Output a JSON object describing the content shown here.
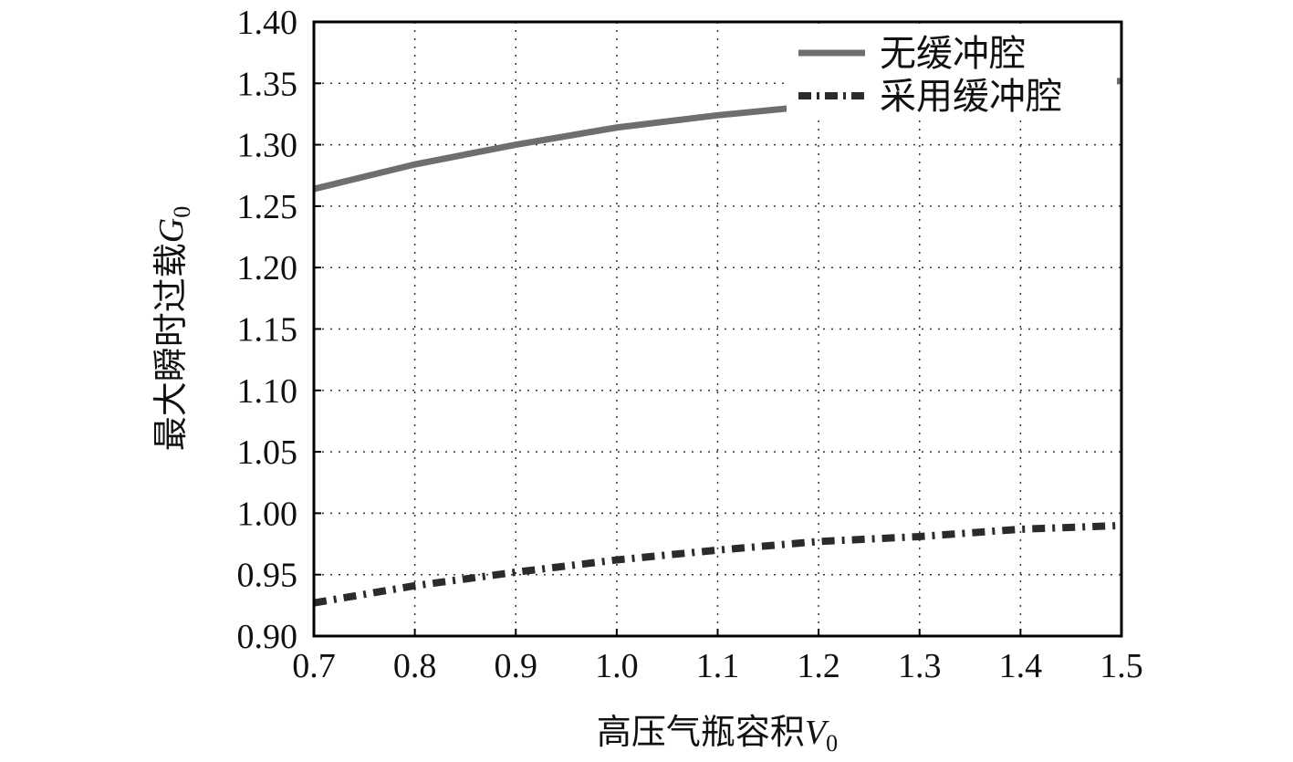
{
  "chart_data": {
    "type": "line",
    "title": "",
    "xlabel": "高压气瓶容积",
    "xlabel_var": "V",
    "xlabel_sub": "0",
    "ylabel": "最大瞬时过载",
    "ylabel_var": "G",
    "ylabel_sub": "0",
    "xlim": [
      0.7,
      1.5
    ],
    "ylim": [
      0.9,
      1.4
    ],
    "xticks": [
      "0.7",
      "0.8",
      "0.9",
      "1.0",
      "1.1",
      "1.2",
      "1.3",
      "1.4",
      "1.5"
    ],
    "yticks": [
      "0.90",
      "0.95",
      "1.00",
      "1.05",
      "1.10",
      "1.15",
      "1.20",
      "1.25",
      "1.30",
      "1.35",
      "1.40"
    ],
    "grid": true,
    "legend_position": "top-right",
    "series": [
      {
        "name": "无缓冲腔",
        "style": "solid",
        "color": "#6e6e6e",
        "x": [
          0.7,
          0.8,
          0.9,
          1.0,
          1.1,
          1.2,
          1.3,
          1.4,
          1.5
        ],
        "y": [
          1.264,
          1.284,
          1.3,
          1.314,
          1.324,
          1.332,
          1.339,
          1.346,
          1.352
        ]
      },
      {
        "name": "采用缓冲腔",
        "style": "dashdot",
        "color": "#2b2b2b",
        "x": [
          0.7,
          0.8,
          0.9,
          1.0,
          1.1,
          1.2,
          1.3,
          1.4,
          1.5
        ],
        "y": [
          0.927,
          0.941,
          0.952,
          0.962,
          0.97,
          0.977,
          0.981,
          0.987,
          0.99
        ]
      }
    ]
  }
}
